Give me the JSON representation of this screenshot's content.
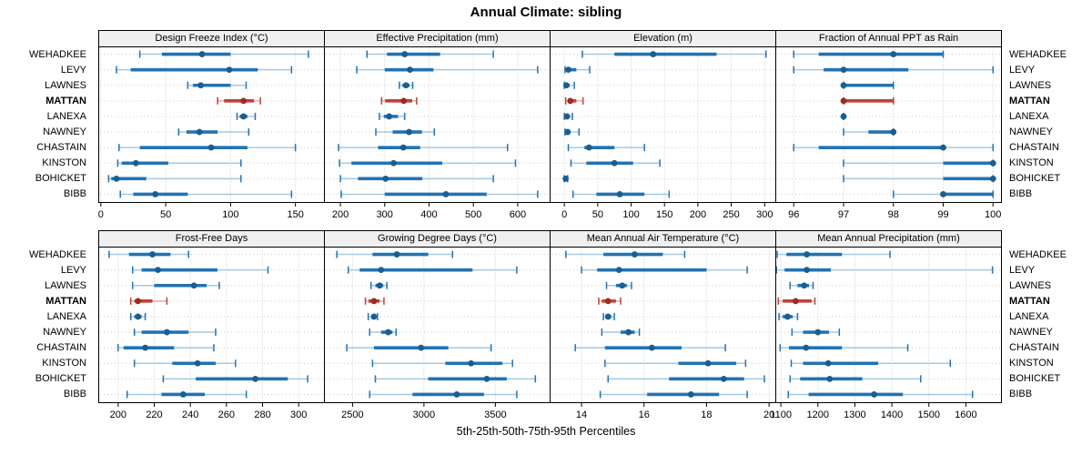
{
  "title": "Annual Climate: sibling",
  "caption": "5th-25th-50th-75th-95th Percentiles",
  "sites": [
    "WEHADKEE",
    "LEVY",
    "LAWNES",
    "MATTAN",
    "LANEXA",
    "NAWNEY",
    "CHASTAIN",
    "KINSTON",
    "BOHICKET",
    "BIBB"
  ],
  "highlight_site": "MATTAN",
  "percentiles": [
    5,
    25,
    50,
    75,
    95
  ],
  "colors": {
    "blue_main": "#2173b4",
    "blue_range": "#a5c9e3",
    "blue_dot": "#1a5e90",
    "red_main": "#bf4138",
    "red_range": "#e2aaa5",
    "red_dot": "#9e2a20",
    "gridline": "#c9c9c9",
    "row_guide": "#cdcdcd",
    "strip_bg": "#f0f0f0",
    "panel_border": "#000000"
  },
  "chart_data": [
    {
      "type": "scatter",
      "style": "percentile-interval",
      "row": "top",
      "title": "Design Freeze Index (°C)",
      "xlim": [
        -2,
        172
      ],
      "ticks": [
        0,
        50,
        100,
        150
      ],
      "values": [
        [
          30,
          47,
          78,
          100,
          160
        ],
        [
          12,
          23,
          99,
          121,
          147
        ],
        [
          67,
          71,
          77,
          100,
          112
        ],
        [
          90,
          95,
          110,
          118,
          123
        ],
        [
          105,
          107,
          110,
          113,
          119
        ],
        [
          60,
          66,
          76,
          90,
          114
        ],
        [
          14,
          30,
          85,
          113,
          150
        ],
        [
          13,
          16,
          27,
          52,
          108
        ],
        [
          6,
          8,
          12,
          35,
          108
        ],
        [
          15,
          25,
          42,
          67,
          147
        ]
      ]
    },
    {
      "type": "scatter",
      "style": "percentile-interval",
      "row": "top",
      "title": "Effective Precipitation (mm)",
      "xlim": [
        163,
        672
      ],
      "ticks": [
        200,
        300,
        400,
        500,
        600
      ],
      "values": [
        [
          260,
          305,
          345,
          425,
          545
        ],
        [
          237,
          300,
          357,
          410,
          645
        ],
        [
          333,
          340,
          348,
          356,
          363
        ],
        [
          293,
          301,
          343,
          362,
          372
        ],
        [
          288,
          298,
          310,
          330,
          345
        ],
        [
          280,
          318,
          355,
          384,
          412
        ],
        [
          196,
          285,
          342,
          380,
          577
        ],
        [
          198,
          225,
          320,
          430,
          595
        ],
        [
          200,
          240,
          302,
          385,
          545
        ],
        [
          202,
          300,
          438,
          530,
          645
        ]
      ]
    },
    {
      "type": "scatter",
      "style": "percentile-interval",
      "row": "top",
      "title": "Elevation (m)",
      "xlim": [
        -22,
        316
      ],
      "ticks": [
        0,
        50,
        100,
        150,
        200,
        250,
        300
      ],
      "values": [
        [
          27,
          75,
          133,
          228,
          302
        ],
        [
          1,
          3,
          6,
          18,
          38
        ],
        [
          0,
          1,
          3,
          8,
          15
        ],
        [
          2,
          5,
          9,
          18,
          28
        ],
        [
          0,
          1,
          4,
          7,
          12
        ],
        [
          1,
          2,
          5,
          9,
          22
        ],
        [
          6,
          30,
          37,
          75,
          120
        ],
        [
          10,
          33,
          75,
          103,
          143
        ],
        [
          0,
          1,
          2,
          3,
          5
        ],
        [
          13,
          48,
          83,
          120,
          157
        ]
      ]
    },
    {
      "type": "scatter",
      "style": "percentile-interval",
      "row": "top",
      "title": "Fraction of Annual PPT as Rain",
      "xlim": [
        95.63,
        100.16
      ],
      "ticks": [
        96,
        97,
        98,
        99,
        100
      ],
      "values": [
        [
          96,
          96.5,
          98,
          99,
          99
        ],
        [
          96,
          96.6,
          97,
          98.3,
          100
        ],
        [
          97,
          97,
          97,
          98,
          98
        ],
        [
          97,
          97,
          97,
          98,
          98
        ],
        [
          97,
          97,
          97,
          97,
          97
        ],
        [
          97,
          97.5,
          98,
          98,
          98
        ],
        [
          96,
          96.5,
          99,
          99,
          100
        ],
        [
          97,
          99,
          100,
          100,
          100
        ],
        [
          97,
          99,
          100,
          100,
          100
        ],
        [
          98,
          99,
          99,
          100,
          100
        ]
      ]
    },
    {
      "type": "scatter",
      "style": "percentile-interval",
      "row": "bottom",
      "title": "Frost-Free Days",
      "xlim": [
        189,
        314
      ],
      "ticks": [
        200,
        220,
        240,
        260,
        280,
        300
      ],
      "values": [
        [
          195,
          206,
          219,
          229,
          239
        ],
        [
          208,
          213,
          222,
          255,
          283
        ],
        [
          208,
          220,
          242,
          249,
          256
        ],
        [
          207,
          209,
          211,
          219,
          227
        ],
        [
          207,
          209,
          211,
          213,
          215
        ],
        [
          209,
          213,
          227,
          239,
          254
        ],
        [
          200,
          203,
          215,
          231,
          253
        ],
        [
          209,
          230,
          244,
          254,
          265
        ],
        [
          225,
          243,
          276,
          294,
          305
        ],
        [
          205,
          224,
          236,
          248,
          271
        ]
      ]
    },
    {
      "type": "scatter",
      "style": "percentile-interval",
      "row": "bottom",
      "title": "Growing Degree Days (°C)",
      "xlim": [
        2300,
        3880
      ],
      "ticks": [
        2500,
        3000,
        3500
      ],
      "values": [
        [
          2390,
          2640,
          2810,
          3030,
          3200
        ],
        [
          2470,
          2550,
          2700,
          3340,
          3650
        ],
        [
          2630,
          2660,
          2690,
          2715,
          2740
        ],
        [
          2590,
          2612,
          2650,
          2690,
          2720
        ],
        [
          2610,
          2632,
          2650,
          2663,
          2675
        ],
        [
          2620,
          2700,
          2750,
          2780,
          2805
        ],
        [
          2460,
          2650,
          2980,
          3170,
          3470
        ],
        [
          2640,
          3150,
          3330,
          3550,
          3620
        ],
        [
          2660,
          3030,
          3440,
          3580,
          3780
        ],
        [
          2620,
          2920,
          3230,
          3420,
          3650
        ]
      ]
    },
    {
      "type": "scatter",
      "style": "percentile-interval",
      "row": "bottom",
      "title": "Mean Annual Air Temperature (°C)",
      "xlim": [
        12.98,
        20.2
      ],
      "ticks": [
        14,
        16,
        18,
        20
      ],
      "values": [
        [
          13.5,
          14.7,
          15.7,
          16.6,
          17.3
        ],
        [
          14.0,
          14.5,
          15.2,
          18.0,
          19.3
        ],
        [
          14.8,
          15.1,
          15.3,
          15.45,
          15.6
        ],
        [
          14.55,
          14.65,
          14.85,
          15.1,
          15.25
        ],
        [
          14.7,
          14.78,
          14.85,
          14.95,
          15.05
        ],
        [
          14.65,
          15.25,
          15.5,
          15.7,
          15.85
        ],
        [
          13.8,
          14.75,
          16.25,
          17.2,
          18.6
        ],
        [
          14.75,
          17.1,
          18.05,
          18.95,
          19.25
        ],
        [
          14.85,
          16.8,
          18.55,
          19.2,
          19.85
        ],
        [
          14.6,
          16.1,
          17.5,
          18.4,
          19.3
        ]
      ]
    },
    {
      "type": "scatter",
      "style": "percentile-interval",
      "row": "bottom",
      "title": "Mean Annual Precipitation (mm)",
      "xlim": [
        1085,
        1695
      ],
      "ticks": [
        1100,
        1200,
        1300,
        1400,
        1500,
        1600
      ],
      "values": [
        [
          1090,
          1115,
          1170,
          1265,
          1395
        ],
        [
          1088,
          1110,
          1170,
          1235,
          1672
        ],
        [
          1125,
          1145,
          1163,
          1176,
          1187
        ],
        [
          1093,
          1105,
          1140,
          1183,
          1192
        ],
        [
          1095,
          1105,
          1118,
          1132,
          1145
        ],
        [
          1130,
          1160,
          1200,
          1230,
          1258
        ],
        [
          1098,
          1122,
          1168,
          1265,
          1443
        ],
        [
          1128,
          1160,
          1228,
          1363,
          1558
        ],
        [
          1125,
          1152,
          1232,
          1320,
          1478
        ],
        [
          1120,
          1175,
          1352,
          1430,
          1618
        ]
      ]
    }
  ]
}
